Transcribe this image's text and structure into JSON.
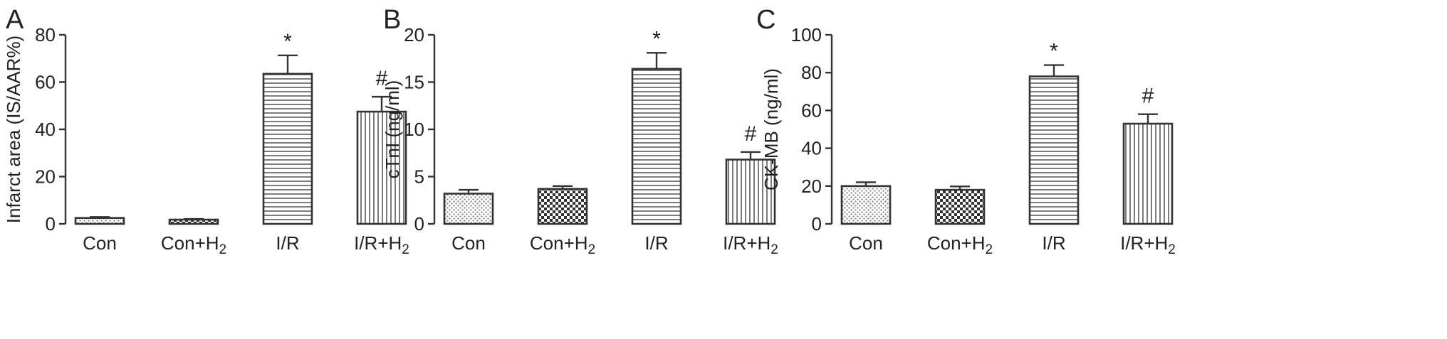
{
  "chart_data": [
    {
      "type": "bar",
      "panel": "A",
      "ylabel": "Infarct area (IS/AAR%)",
      "ylim": [
        0,
        80
      ],
      "yticks": [
        0,
        20,
        40,
        60,
        80
      ],
      "categories": [
        "Con",
        "Con+H2",
        "I/R",
        "I/R+H2"
      ],
      "values": [
        2.5,
        1.8,
        63.5,
        47.5
      ],
      "errors": [
        0.4,
        0.3,
        7.8,
        6.3
      ],
      "significance": [
        "",
        "",
        "*",
        "#"
      ],
      "fill_patterns": [
        "dots",
        "checker",
        "horizontal",
        "vertical"
      ]
    },
    {
      "type": "bar",
      "panel": "B",
      "ylabel": "cTnI (ng/ml)",
      "ylim": [
        0,
        20
      ],
      "yticks": [
        0,
        5,
        10,
        15,
        20
      ],
      "categories": [
        "Con",
        "Con+H2",
        "I/R",
        "I/R+H2"
      ],
      "values": [
        3.2,
        3.7,
        16.4,
        6.8
      ],
      "errors": [
        0.4,
        0.3,
        1.7,
        0.8
      ],
      "significance": [
        "",
        "",
        "*",
        "#"
      ],
      "fill_patterns": [
        "dots",
        "checker",
        "horizontal",
        "vertical"
      ]
    },
    {
      "type": "bar",
      "panel": "C",
      "ylabel": "CK-MB (ng/ml)",
      "ylim": [
        0,
        100
      ],
      "yticks": [
        0,
        20,
        40,
        60,
        80,
        100
      ],
      "categories": [
        "Con",
        "Con+H2",
        "I/R",
        "I/R+H2"
      ],
      "values": [
        20,
        18,
        78,
        53
      ],
      "errors": [
        2,
        1.8,
        6,
        5
      ],
      "significance": [
        "",
        "",
        "*",
        "#"
      ],
      "fill_patterns": [
        "dots",
        "checker",
        "horizontal",
        "vertical"
      ]
    }
  ]
}
